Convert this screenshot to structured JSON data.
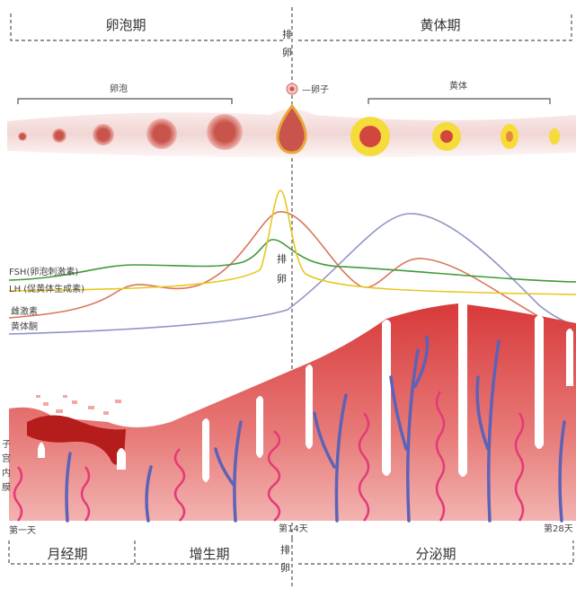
{
  "top": {
    "follicular_phase": "卵泡期",
    "luteal_phase": "黄体期",
    "ovulation_top": "排",
    "ovulation_bottom": "卵"
  },
  "ovary": {
    "follicle_label": "卵泡",
    "corpus_luteum_label": "黄体",
    "egg_label": "—卵子"
  },
  "hormones": {
    "fsh": "FSH(卵泡刺激素)",
    "lh": "LH (促黄体生成素)",
    "estrogen": "雌激素",
    "progesterone": "黄体酮",
    "ovulation_top": "排",
    "ovulation_bottom": "卵",
    "colors": {
      "fsh": "#3f9a3a",
      "lh": "#e8c81e",
      "estrogen": "#d9765a",
      "progesterone": "#8f95c4"
    }
  },
  "endometrium": {
    "label_chars": [
      "子",
      "宫",
      "内",
      "膜"
    ],
    "color": "#d83a3a"
  },
  "timeline": {
    "day1": "第一天",
    "day14": "第14天",
    "day28": "第28天"
  },
  "bottom": {
    "menstrual": "月经期",
    "proliferative": "增生期",
    "secretory": "分泌期",
    "ovulation_top": "排",
    "ovulation_bottom": "卵"
  }
}
